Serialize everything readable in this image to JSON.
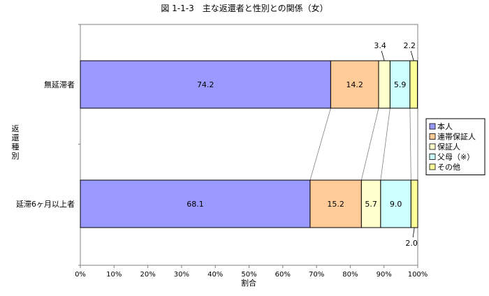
{
  "chart_data": {
    "type": "bar",
    "orientation": "horizontal",
    "stacked": true,
    "title": "図 1-1-3　主な返還者と性別との関係（女）",
    "xlabel": "割合",
    "ylabel": "返還種別",
    "xlim": [
      0,
      100
    ],
    "xticks": [
      "0%",
      "10%",
      "20%",
      "30%",
      "40%",
      "50%",
      "60%",
      "70%",
      "80%",
      "90%",
      "100%"
    ],
    "categories": [
      "無延滞者",
      "延滞6ヶ月以上者"
    ],
    "series": [
      {
        "name": "本人",
        "values": [
          74.2,
          68.1
        ],
        "color": "#9999ff"
      },
      {
        "name": "連帯保証人",
        "values": [
          14.2,
          15.2
        ],
        "color": "#ffcc99"
      },
      {
        "name": "保証人",
        "values": [
          3.4,
          5.7
        ],
        "color": "#ffffcc"
      },
      {
        "name": "父母（※）",
        "values": [
          5.9,
          9.0
        ],
        "color": "#ccffff"
      },
      {
        "name": "その他",
        "values": [
          2.2,
          2.0
        ],
        "color": "#ffff99"
      }
    ],
    "data_labels": [
      [
        "74.2",
        "14.2",
        "3.4",
        "5.9",
        "2.2"
      ],
      [
        "68.1",
        "15.2",
        "5.7",
        "9.0",
        "2.0"
      ]
    ],
    "legend_position": "right",
    "series_lines": true,
    "grid": false
  }
}
